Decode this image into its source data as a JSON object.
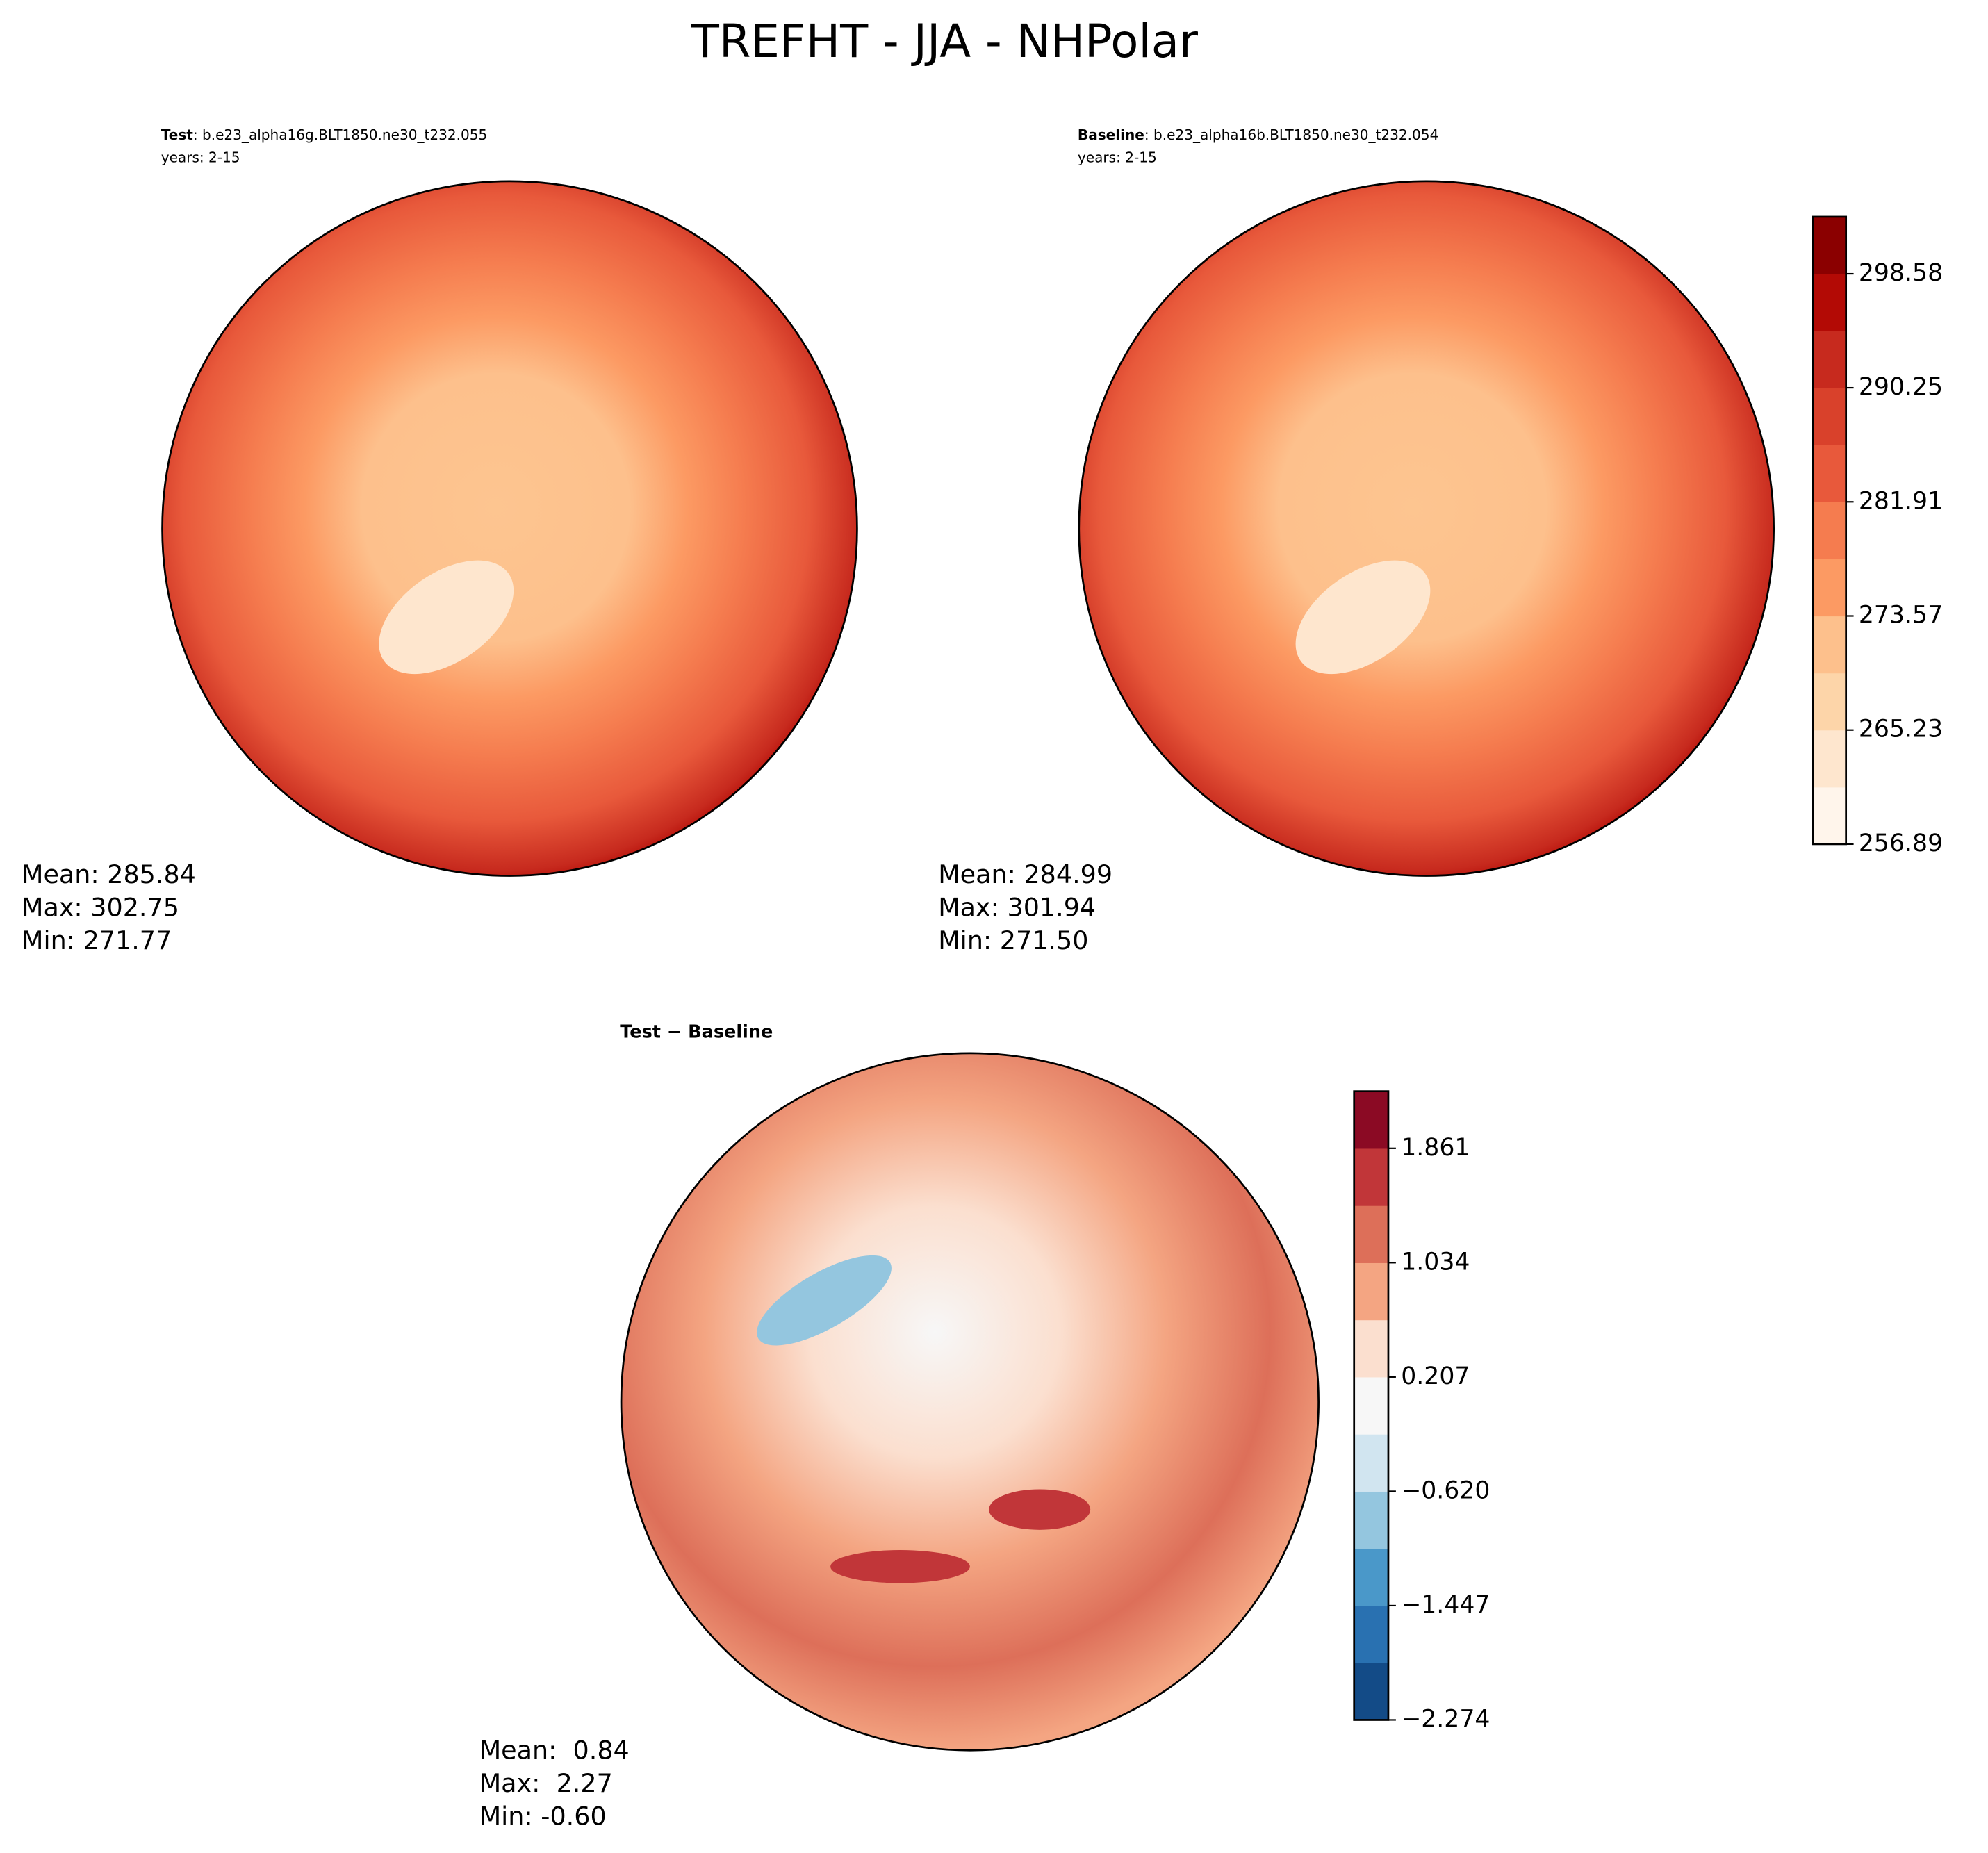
{
  "figure_title": "TREFHT - JJA - NHPolar",
  "chart_data": [
    {
      "type": "contour-map",
      "label": "Test",
      "case": ": b.e23_alpha16g.BLT1850.ne30_t232.055",
      "years": "years: 2-15",
      "stats": [
        "Mean: 285.84",
        "Max: 302.75",
        "Min: 271.77"
      ]
    },
    {
      "type": "contour-map",
      "label": "Baseline",
      "case": ": b.e23_alpha16b.BLT1850.ne30_t232.054",
      "years": "years: 2-15",
      "stats": [
        "Mean: 284.99",
        "Max: 301.94",
        "Min: 271.50"
      ],
      "colorbar": {
        "type": "colorbar",
        "ylim": [
          256.89,
          302.75
        ],
        "yticks": [
          256.89,
          265.23,
          273.57,
          281.91,
          290.25,
          298.58
        ],
        "colors": [
          "#fff5eb",
          "#fee6ce",
          "#fdd5a9",
          "#fdc08c",
          "#fc9a63",
          "#f57c4f",
          "#e8593b",
          "#d9412b",
          "#c72a1e",
          "#b30a05",
          "#8b0000"
        ]
      }
    },
    {
      "type": "contour-map",
      "label": "Test − Baseline",
      "stats": [
        "Mean:  0.84",
        "Max:  2.27",
        "Min: -0.60"
      ],
      "colorbar": {
        "type": "colorbar",
        "ylim": [
          -2.274,
          2.274
        ],
        "yticks": [
          {
            "value": -2.274,
            "label": "−2.274"
          },
          {
            "value": -1.447,
            "label": "−1.447"
          },
          {
            "value": -0.62,
            "label": "−0.620"
          },
          0.207,
          1.034,
          1.861
        ],
        "colors": [
          "#134b87",
          "#2971b1",
          "#4a98c9",
          "#94c6df",
          "#d1e5f0",
          "#f7f7f7",
          "#fbdfcf",
          "#f4a582",
          "#dd6f59",
          "#c13639",
          "#8b0a24"
        ]
      }
    }
  ]
}
